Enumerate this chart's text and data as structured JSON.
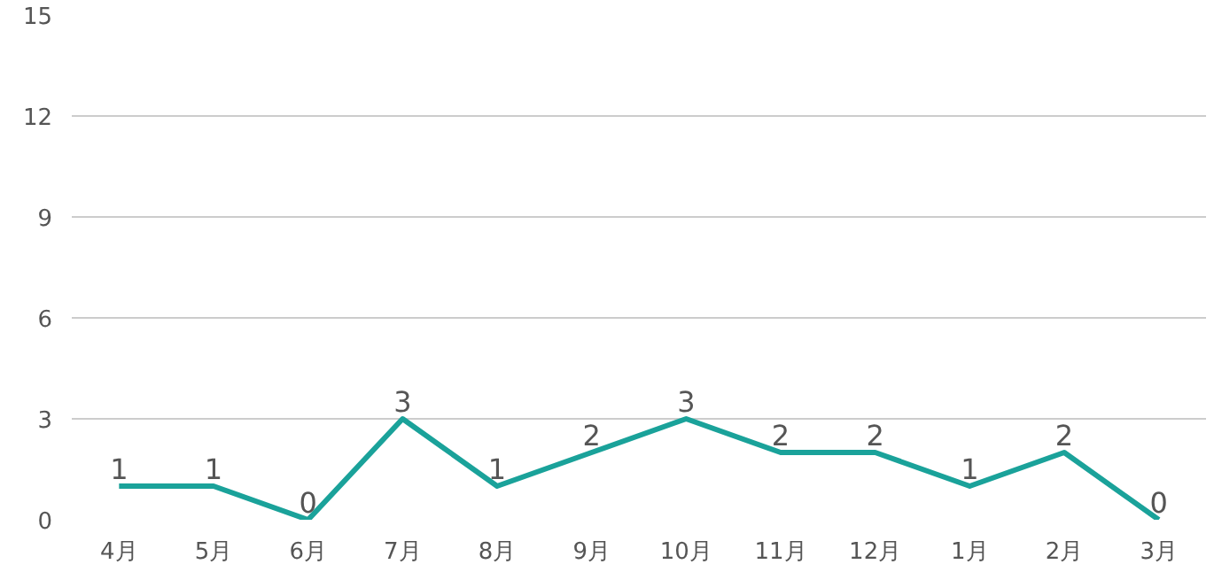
{
  "chart_data": {
    "type": "line",
    "categories": [
      "4月",
      "5月",
      "6月",
      "7月",
      "8月",
      "9月",
      "10月",
      "11月",
      "12月",
      "1月",
      "2月",
      "3月"
    ],
    "series": [
      {
        "color": "#1aa29a",
        "values": [
          1,
          1,
          0,
          3,
          1,
          2,
          3,
          2,
          2,
          1,
          2,
          0
        ]
      }
    ],
    "ylim": [
      0,
      15
    ],
    "yticks": [
      0,
      3,
      6,
      9,
      12,
      15
    ],
    "grid": "y",
    "data_labels": true,
    "marker": "none",
    "line_style": "solid"
  }
}
